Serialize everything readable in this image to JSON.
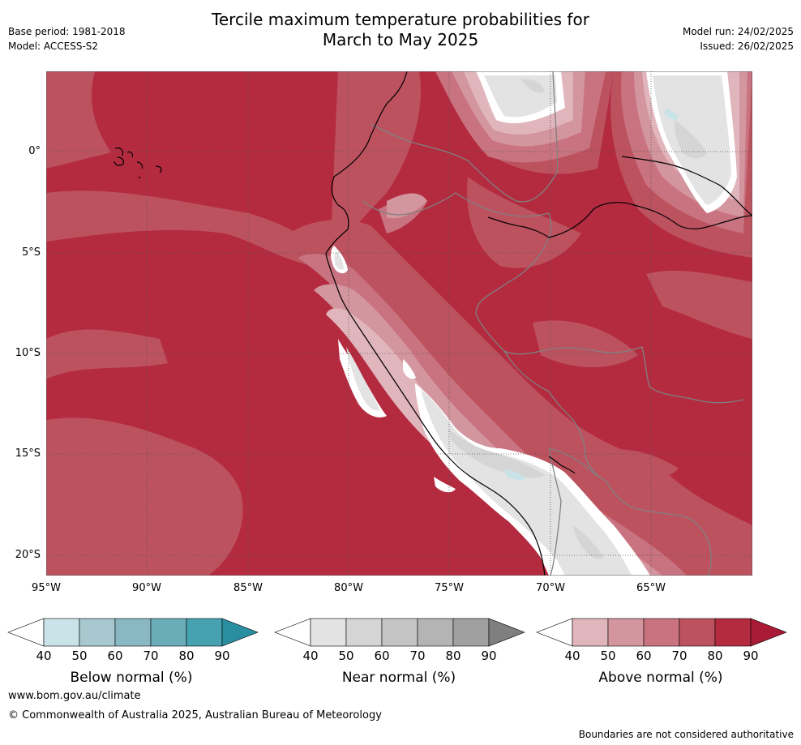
{
  "title": {
    "line1": "Tercile maximum temperature probabilities for",
    "line2": "March to May 2025"
  },
  "meta": {
    "base_period": "Base period: 1981-2018",
    "model": "Model: ACCESS-S2",
    "model_run": "Model run: 24/02/2025",
    "issued": "Issued: 26/02/2025"
  },
  "axes": {
    "lat_labels": [
      "0°",
      "5°S",
      "10°S",
      "15°S",
      "20°S"
    ],
    "lon_labels": [
      "95°W",
      "90°W",
      "85°W",
      "80°W",
      "75°W",
      "70°W",
      "65°W"
    ]
  },
  "colorbars": [
    {
      "label": "Below normal (%)",
      "ticks": [
        "40",
        "50",
        "60",
        "70",
        "80",
        "90"
      ],
      "colors": [
        "#ffffff",
        "#c9e3e8",
        "#a7c8cf",
        "#89b8c3",
        "#6aacb8",
        "#46a1b1",
        "#2a8ea1"
      ]
    },
    {
      "label": "Near normal (%)",
      "ticks": [
        "40",
        "50",
        "60",
        "70",
        "80",
        "90"
      ],
      "colors": [
        "#ffffff",
        "#e3e3e3",
        "#d5d5d5",
        "#c5c5c5",
        "#b4b4b4",
        "#a0a0a0",
        "#7f7f7f"
      ]
    },
    {
      "label": "Above normal (%)",
      "ticks": [
        "40",
        "50",
        "60",
        "70",
        "80",
        "90"
      ],
      "colors": [
        "#ffffff",
        "#e0b5bb",
        "#d3959e",
        "#c8737f",
        "#bd525f",
        "#b42b40",
        "#a81a35"
      ]
    }
  ],
  "footer": {
    "url": "www.bom.gov.au/climate",
    "copyright": "© Commonwealth of Australia 2025, Australian Bureau of Meteorology",
    "disclaimer": "Boundaries are not considered authoritative"
  }
}
